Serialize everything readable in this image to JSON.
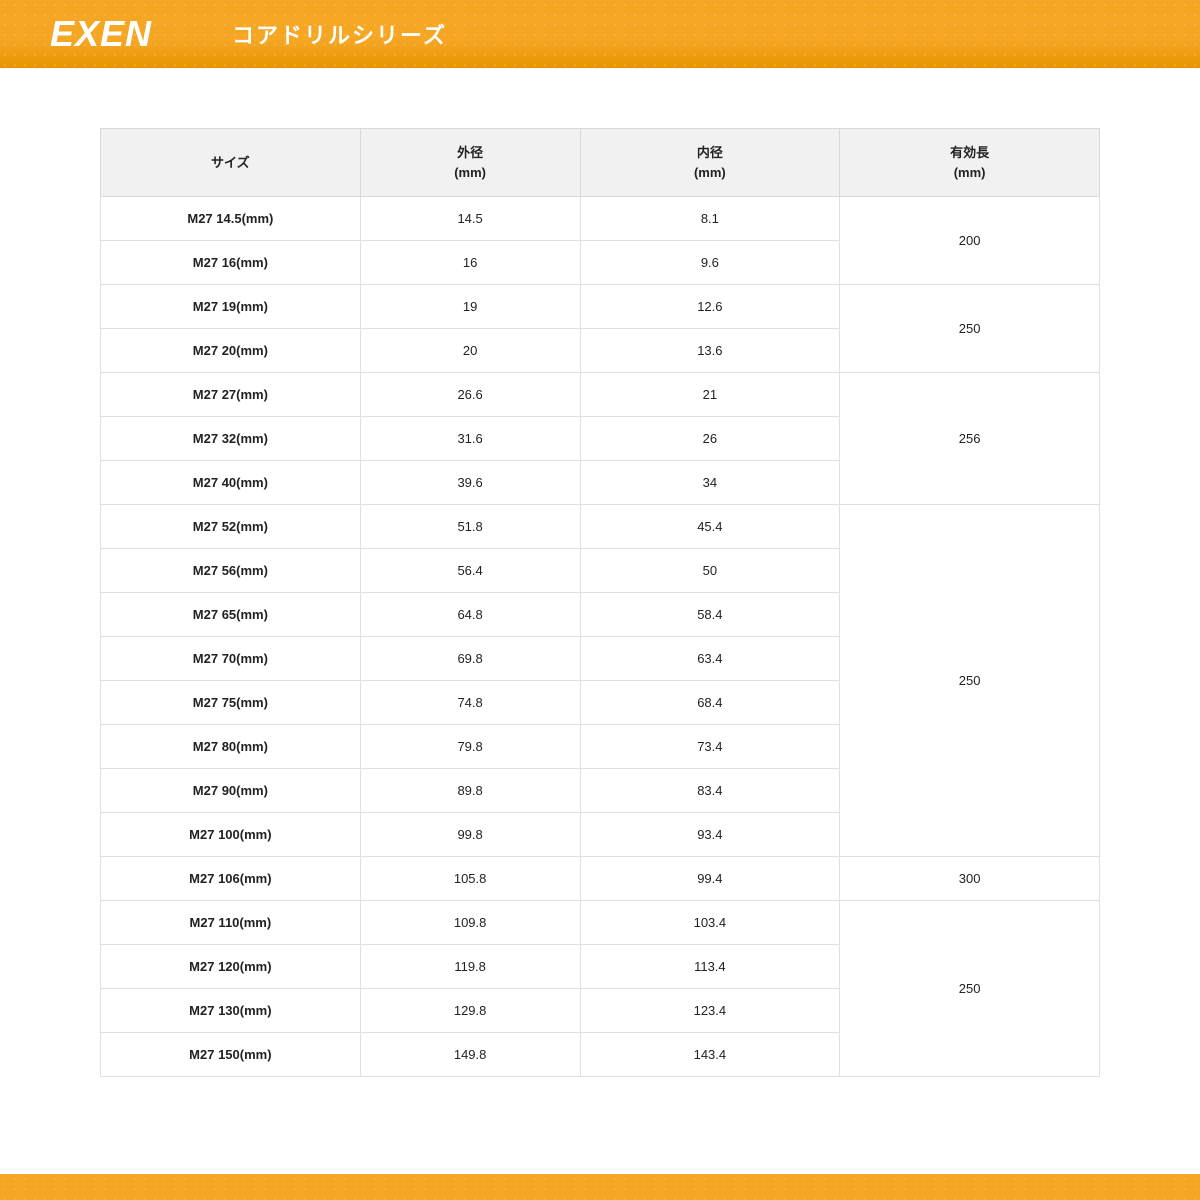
{
  "brand": "EXEN",
  "page_title": "コアドリルシリーズ",
  "colors": {
    "header_bg": "#f5a623",
    "header_text": "#ffffff",
    "th_bg": "#f1f1f1",
    "border": "#d8d8d8",
    "cell_border": "#e0e0e0",
    "footer_bg": "#f5a623",
    "body_bg": "#ffffff",
    "text": "#222222"
  },
  "table": {
    "columns": [
      {
        "label_line1": "サイズ",
        "label_line2": ""
      },
      {
        "label_line1": "外径",
        "label_line2": "(mm)"
      },
      {
        "label_line1": "内径",
        "label_line2": "(mm)"
      },
      {
        "label_line1": "有効長",
        "label_line2": "(mm)"
      }
    ],
    "groups": [
      {
        "length": "200",
        "rows": [
          {
            "size": "M27  14.5(mm)",
            "od": "14.5",
            "id": "8.1"
          },
          {
            "size": "M27  16(mm)",
            "od": "16",
            "id": "9.6"
          }
        ]
      },
      {
        "length": "250",
        "rows": [
          {
            "size": "M27  19(mm)",
            "od": "19",
            "id": "12.6"
          },
          {
            "size": "M27  20(mm)",
            "od": "20",
            "id": "13.6"
          }
        ]
      },
      {
        "length": "256",
        "rows": [
          {
            "size": "M27  27(mm)",
            "od": "26.6",
            "id": "21"
          },
          {
            "size": "M27  32(mm)",
            "od": "31.6",
            "id": "26"
          },
          {
            "size": "M27  40(mm)",
            "od": "39.6",
            "id": "34"
          }
        ]
      },
      {
        "length": "250",
        "rows": [
          {
            "size": "M27  52(mm)",
            "od": "51.8",
            "id": "45.4"
          },
          {
            "size": "M27  56(mm)",
            "od": "56.4",
            "id": "50"
          },
          {
            "size": "M27  65(mm)",
            "od": "64.8",
            "id": "58.4"
          },
          {
            "size": "M27  70(mm)",
            "od": "69.8",
            "id": "63.4"
          },
          {
            "size": "M27  75(mm)",
            "od": "74.8",
            "id": "68.4"
          },
          {
            "size": "M27  80(mm)",
            "od": "79.8",
            "id": "73.4"
          },
          {
            "size": "M27  90(mm)",
            "od": "89.8",
            "id": "83.4"
          },
          {
            "size": "M27  100(mm)",
            "od": "99.8",
            "id": "93.4"
          }
        ]
      },
      {
        "length": "300",
        "rows": [
          {
            "size": "M27  106(mm)",
            "od": "105.8",
            "id": "99.4"
          }
        ]
      },
      {
        "length": "250",
        "rows": [
          {
            "size": "M27  110(mm)",
            "od": "109.8",
            "id": "103.4"
          },
          {
            "size": "M27  120(mm)",
            "od": "119.8",
            "id": "113.4"
          },
          {
            "size": "M27  130(mm)",
            "od": "129.8",
            "id": "123.4"
          },
          {
            "size": "M27  150(mm)",
            "od": "149.8",
            "id": "143.4"
          }
        ]
      }
    ]
  }
}
